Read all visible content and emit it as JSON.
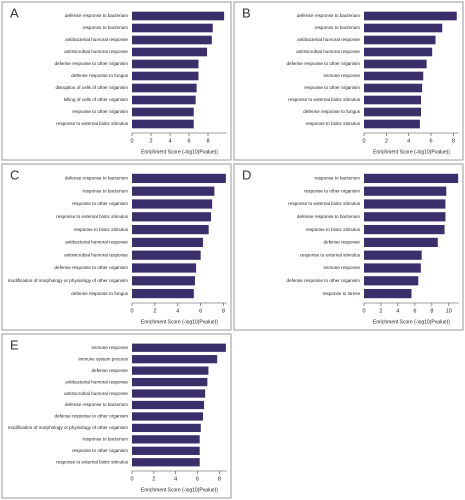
{
  "chart_data": [
    {
      "panel": "A",
      "type": "bar",
      "orientation": "horizontal",
      "color": "#3a2f6a",
      "categories": [
        "defense response to bacterium",
        "response to bacterium",
        "antibacterial humoral response",
        "antimicrobial humoral response",
        "defense response to other organism",
        "defense response to fungus",
        "disruption of cells of other organism",
        "killing of cells of other organism",
        "response to other organism",
        "response to external biotic stimulus"
      ],
      "values": [
        9.7,
        8.5,
        8.4,
        7.9,
        7.0,
        7.0,
        6.8,
        6.7,
        6.5,
        6.5
      ],
      "xlim": [
        0,
        10
      ],
      "xticks": [
        0,
        2,
        4,
        6,
        8
      ],
      "xlabel": "Enrichment Score (-log10(Pvalue))"
    },
    {
      "panel": "B",
      "type": "bar",
      "orientation": "horizontal",
      "color": "#3a2f6a",
      "categories": [
        "defense response to bacterium",
        "response to bacterium",
        "antibacterial humoral response",
        "antimicrobial humoral response",
        "defense response to other organism",
        "immune response",
        "response to other organism",
        "response to external biotic stimulus",
        "defense response to fungus",
        "response to biotic stimulus"
      ],
      "values": [
        8.3,
        7.0,
        6.4,
        6.1,
        5.6,
        5.3,
        5.2,
        5.1,
        5.1,
        5.0
      ],
      "xlim": [
        0,
        8.5
      ],
      "xticks": [
        0,
        2,
        4,
        6,
        8
      ],
      "xlabel": "Enrichment Score (-log10(Pvalue))"
    },
    {
      "panel": "C",
      "type": "bar",
      "orientation": "horizontal",
      "color": "#3a2f6a",
      "categories": [
        "defense response to bacterium",
        "response to bacterium",
        "response to other organism",
        "response to external biotic stimulus",
        "response to biotic stimulus",
        "antibacterial humoral response",
        "antimicrobial humoral response",
        "defense response to other organism",
        "modification of morphology or physiology of other organism",
        "defense response to fungus"
      ],
      "values": [
        8.2,
        7.2,
        7.0,
        6.9,
        6.7,
        6.2,
        6.0,
        5.6,
        5.5,
        5.4
      ],
      "xlim": [
        0,
        8.3
      ],
      "xticks": [
        0,
        2,
        4,
        6,
        8
      ],
      "xlabel": "Enrichment Score (-log10(Pvalue))"
    },
    {
      "panel": "D",
      "type": "bar",
      "orientation": "horizontal",
      "color": "#3a2f6a",
      "categories": [
        "response to bacterium",
        "response to other organism",
        "response to external biotic stimulus",
        "defense response to bacterium",
        "response to biotic stimulus",
        "defense response",
        "response to external stimulus",
        "immune response",
        "defense response to other organism",
        "response to stress"
      ],
      "values": [
        11.1,
        9.7,
        9.6,
        9.6,
        9.5,
        8.7,
        6.8,
        6.7,
        6.4,
        5.6
      ],
      "xlim": [
        0,
        11.2
      ],
      "xticks": [
        0,
        2,
        4,
        6,
        8,
        10
      ],
      "xlabel": "Enrichment Score (-log10(Pvalue))"
    },
    {
      "panel": "E",
      "type": "bar",
      "orientation": "horizontal",
      "color": "#3a2f6a",
      "categories": [
        "immune response",
        "immune system process",
        "defense response",
        "antibacterial humoral response",
        "antimicrobial humoral response",
        "defense response to bacterium",
        "defense response to other organism",
        "modification of morphology or physiology of other organism",
        "response to bacterium",
        "response to other organism",
        "response to external biotic stimulus"
      ],
      "values": [
        8.6,
        7.8,
        7.0,
        6.9,
        6.7,
        6.6,
        6.5,
        6.3,
        6.2,
        6.2,
        6.2
      ],
      "xlim": [
        0,
        8.7
      ],
      "xticks": [
        0,
        2,
        4,
        6,
        8
      ],
      "xlabel": "Enrichment Score (-log10(Pvalue))"
    }
  ]
}
